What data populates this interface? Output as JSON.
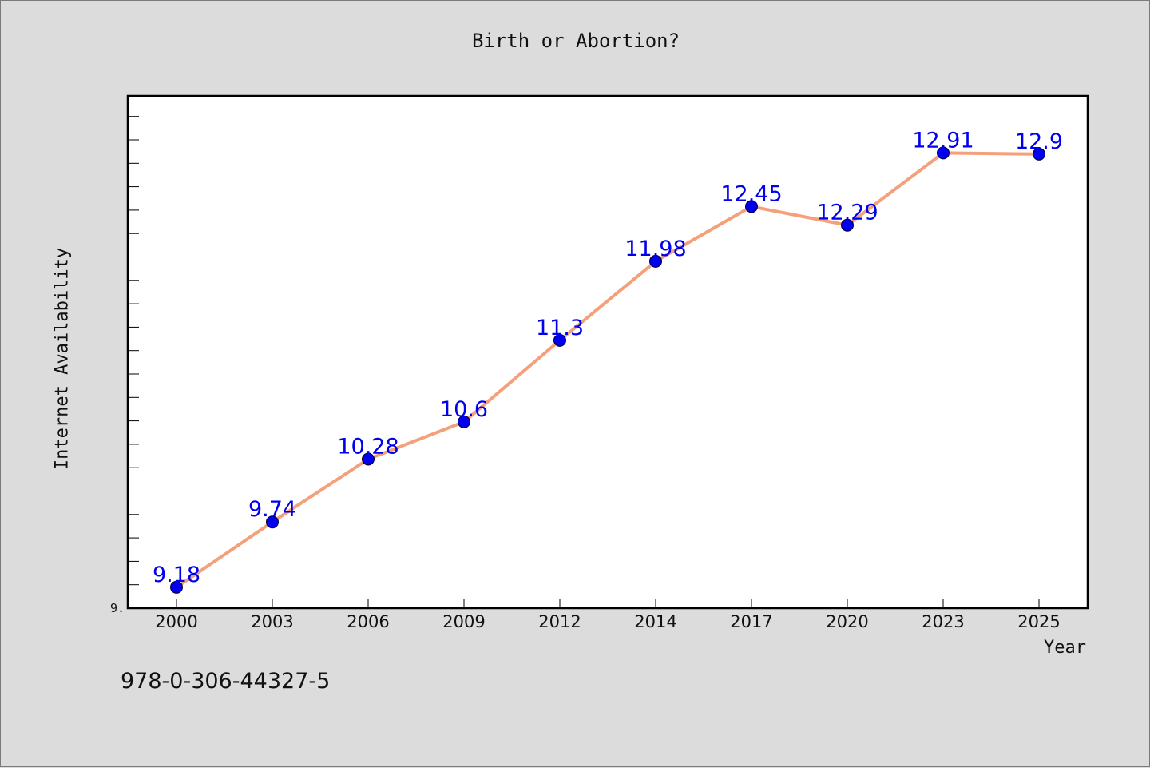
{
  "footer": {
    "isbn": "978-0-306-44327-5"
  },
  "colors": {
    "background": "#dcdcdc",
    "line": "#f4a07a",
    "marker": "#0000ee",
    "label": "#0000ee"
  },
  "chart_data": {
    "type": "line",
    "title": "Birth or Abortion?",
    "xlabel": "Year",
    "ylabel": "Internet Availability",
    "y_tick_label": "9.",
    "categories": [
      "2000",
      "2003",
      "2006",
      "2009",
      "2012",
      "2014",
      "2017",
      "2020",
      "2023",
      "2025"
    ],
    "series": [
      {
        "values": [
          9.18,
          9.74,
          10.28,
          10.6,
          11.3,
          11.98,
          12.45,
          12.29,
          12.91,
          12.9
        ]
      }
    ],
    "ylim": [
      9.0,
      13.4
    ],
    "grid": false
  }
}
